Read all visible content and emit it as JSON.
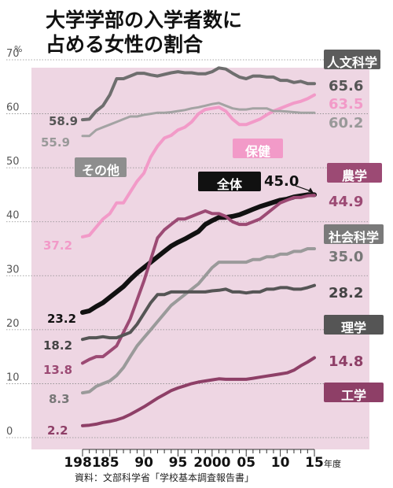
{
  "title_lines": [
    "大学学部の入学者数に",
    "占める女性の割合"
  ],
  "source": "資料：文部科学省「学校基本調査報告書」",
  "chart_data": {
    "type": "line",
    "title": "大学学部の入学者数に占める女性の割合",
    "ylabel": "%",
    "xlabel": "年度",
    "ylim": [
      0,
      70
    ],
    "xlim": [
      1981,
      2015
    ],
    "y_ticks": [
      "0",
      "10",
      "20",
      "30",
      "40",
      "50",
      "60",
      "70"
    ],
    "x_ticks": [
      {
        "year": 1981,
        "label": "1981"
      },
      {
        "year": 1985,
        "label": "85"
      },
      {
        "year": 1990,
        "label": "90"
      },
      {
        "year": 1995,
        "label": "95"
      },
      {
        "year": 2000,
        "label": "2000"
      },
      {
        "year": 2005,
        "label": "05"
      },
      {
        "year": 2010,
        "label": "10"
      },
      {
        "year": 2015,
        "label": "15"
      }
    ],
    "x_unit": "年度",
    "background_color": "#eed6e3",
    "grid": "horizontal",
    "x": [
      1981,
      1982,
      1983,
      1984,
      1985,
      1986,
      1987,
      1988,
      1989,
      1990,
      1991,
      1992,
      1993,
      1994,
      1995,
      1996,
      1997,
      1998,
      1999,
      2000,
      2001,
      2002,
      2003,
      2004,
      2005,
      2006,
      2007,
      2008,
      2009,
      2010,
      2011,
      2012,
      2013,
      2014,
      2015
    ],
    "series": [
      {
        "name": "人文科学",
        "color": "#6e6e6e",
        "width": 4,
        "start_label": "58.9",
        "end_label": "65.6",
        "label_color": "#555555",
        "name_bg": "#5c5c5c",
        "values": [
          58.9,
          59.0,
          60.5,
          61.5,
          63.5,
          66.5,
          66.5,
          67.0,
          67.5,
          67.5,
          67.2,
          67.0,
          67.3,
          67.6,
          67.8,
          67.6,
          67.6,
          67.4,
          67.4,
          67.8,
          68.5,
          68.3,
          67.5,
          66.8,
          66.5,
          67.0,
          67.0,
          66.8,
          66.8,
          66.2,
          66.2,
          65.8,
          66.0,
          65.6,
          65.6
        ]
      },
      {
        "name": "保健",
        "color": "#f29ac8",
        "width": 4,
        "start_label": "37.2",
        "end_label": "63.5",
        "label_color": "#f29ac8",
        "name_bg": "#f29ac8",
        "values": [
          37.2,
          37.5,
          39.0,
          40.5,
          41.5,
          43.5,
          43.5,
          45.5,
          47.5,
          49.0,
          52.0,
          54.0,
          55.5,
          56.0,
          57.0,
          57.5,
          58.5,
          60.0,
          60.8,
          61.0,
          61.2,
          60.5,
          59.0,
          58.0,
          58.0,
          58.5,
          59.0,
          59.8,
          60.5,
          61.0,
          61.5,
          62.0,
          62.3,
          62.8,
          63.5
        ]
      },
      {
        "name": "その他",
        "color": "#a3a3a3",
        "width": 3,
        "start_label": "55.9",
        "end_label": "60.2",
        "label_color": "#999999",
        "name_bg": "#8e8e8e",
        "values": [
          55.9,
          55.9,
          57.0,
          57.5,
          58.0,
          58.5,
          59.0,
          59.5,
          59.5,
          59.8,
          60.0,
          60.2,
          60.2,
          60.3,
          60.5,
          60.7,
          61.0,
          61.2,
          61.5,
          61.8,
          62.0,
          61.5,
          61.0,
          60.8,
          60.8,
          61.0,
          61.0,
          61.0,
          60.5,
          60.5,
          60.4,
          60.3,
          60.2,
          60.2,
          60.2
        ]
      },
      {
        "name": "全体",
        "color": "#111111",
        "width": 6,
        "start_label": "23.2",
        "end_label": "45.0",
        "label_color": "#111111",
        "name_bg": "#111111",
        "values": [
          23.2,
          23.5,
          24.3,
          25.0,
          26.0,
          27.0,
          28.0,
          29.3,
          30.5,
          31.5,
          32.5,
          33.5,
          34.5,
          35.5,
          36.2,
          36.8,
          37.5,
          38.2,
          39.5,
          40.2,
          40.8,
          40.8,
          41.0,
          41.3,
          41.8,
          42.3,
          42.8,
          43.2,
          43.6,
          44.0,
          44.2,
          44.6,
          44.8,
          45.0,
          45.0
        ]
      },
      {
        "name": "農学",
        "color": "#9c4a74",
        "width": 4,
        "start_label": "13.8",
        "end_label": "44.9",
        "label_color": "#9c4a74",
        "name_bg": "#9c4a74",
        "values": [
          13.8,
          14.5,
          15.0,
          15.0,
          16.0,
          17.0,
          19.5,
          22.0,
          25.5,
          29.0,
          33.0,
          37.0,
          38.5,
          39.5,
          40.5,
          40.5,
          41.0,
          41.5,
          42.0,
          41.5,
          41.5,
          41.0,
          40.0,
          39.5,
          39.5,
          40.0,
          40.5,
          41.5,
          42.5,
          43.5,
          44.0,
          44.5,
          44.5,
          44.8,
          44.9
        ]
      },
      {
        "name": "社会科学",
        "color": "#9a9a9a",
        "width": 4,
        "start_label": "8.3",
        "end_label": "35.0",
        "label_color": "#777777",
        "name_bg": "#7a7a7a",
        "values": [
          8.3,
          8.5,
          9.5,
          10.0,
          10.5,
          11.5,
          13.0,
          15.0,
          17.0,
          18.5,
          20.0,
          21.5,
          23.0,
          24.5,
          25.5,
          26.5,
          27.5,
          28.5,
          30.0,
          31.5,
          32.5,
          32.5,
          32.5,
          32.5,
          32.5,
          33.0,
          33.0,
          33.5,
          33.5,
          34.0,
          34.0,
          34.5,
          34.5,
          35.0,
          35.0
        ]
      },
      {
        "name": "理学",
        "color": "#555555",
        "width": 4,
        "start_label": "18.2",
        "end_label": "28.2",
        "label_color": "#444444",
        "name_bg": "#555555",
        "values": [
          18.2,
          18.5,
          18.5,
          18.7,
          18.5,
          18.5,
          19.0,
          19.5,
          21.0,
          23.0,
          25.0,
          26.5,
          26.5,
          27.0,
          27.0,
          27.0,
          27.0,
          27.0,
          27.0,
          27.2,
          27.3,
          27.5,
          27.0,
          27.0,
          26.8,
          27.0,
          27.0,
          27.5,
          27.5,
          27.8,
          27.8,
          27.5,
          27.5,
          27.8,
          28.2
        ]
      },
      {
        "name": "工学",
        "color": "#8e3f67",
        "width": 4,
        "start_label": "2.2",
        "end_label": "14.8",
        "label_color": "#8e3f67",
        "name_bg": "#8e3f67",
        "values": [
          2.2,
          2.3,
          2.5,
          2.8,
          3.0,
          3.3,
          3.7,
          4.3,
          5.0,
          5.7,
          6.5,
          7.3,
          8.0,
          8.7,
          9.2,
          9.6,
          10.0,
          10.3,
          10.5,
          10.7,
          10.9,
          10.8,
          10.8,
          10.8,
          10.8,
          11.0,
          11.2,
          11.4,
          11.6,
          11.8,
          12.0,
          12.5,
          13.3,
          14.0,
          14.8
        ]
      }
    ]
  }
}
